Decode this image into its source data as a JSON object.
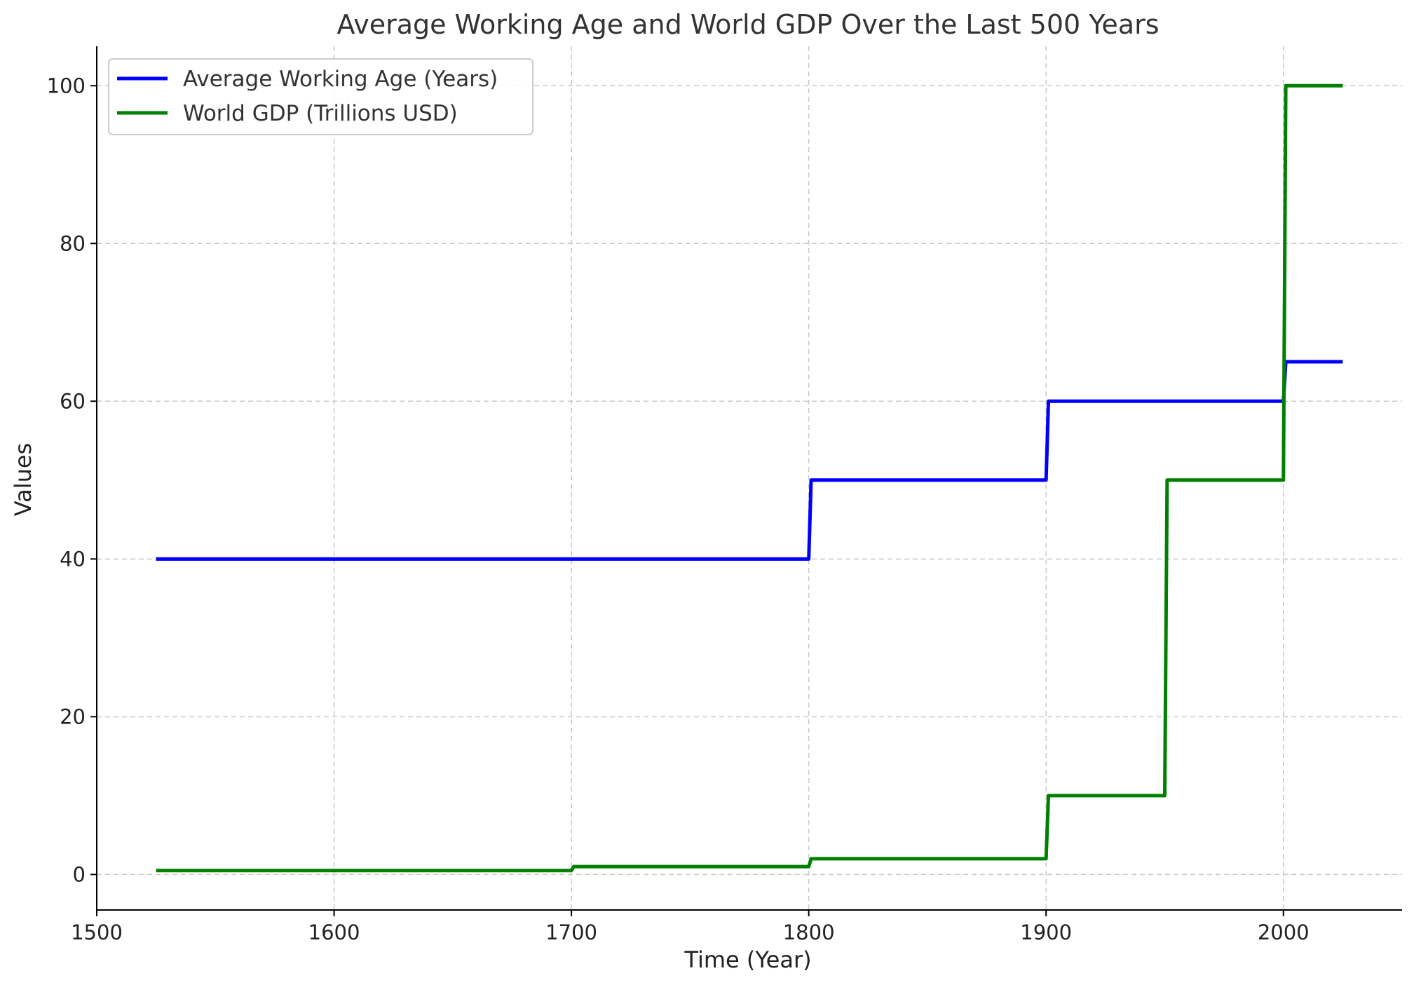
{
  "chart_data": {
    "type": "line",
    "title": "Average Working Age and World GDP Over the Last 500 Years",
    "xlabel": "Time (Year)",
    "ylabel": "Values",
    "xlim": [
      1500,
      2050
    ],
    "ylim": [
      -4.5,
      105
    ],
    "x_ticks": [
      1500,
      1600,
      1700,
      1800,
      1900,
      2000
    ],
    "y_ticks": [
      0,
      20,
      40,
      60,
      80,
      100
    ],
    "grid": true,
    "legend_position": "top-left",
    "series": [
      {
        "name": "Average Working Age (Years)",
        "color": "#0000ff",
        "x": [
          1525,
          1800,
          1801,
          1900,
          1901,
          2000,
          2001,
          2025
        ],
        "y": [
          40,
          40,
          50,
          50,
          60,
          60,
          65,
          65
        ]
      },
      {
        "name": "World GDP (Trillions USD)",
        "color": "#008000",
        "x": [
          1525,
          1700,
          1701,
          1800,
          1801,
          1900,
          1901,
          1950,
          1951,
          2000,
          2001,
          2025
        ],
        "y": [
          0.5,
          0.5,
          1,
          1,
          2,
          2,
          10,
          10,
          50,
          50,
          100,
          100
        ]
      }
    ]
  }
}
